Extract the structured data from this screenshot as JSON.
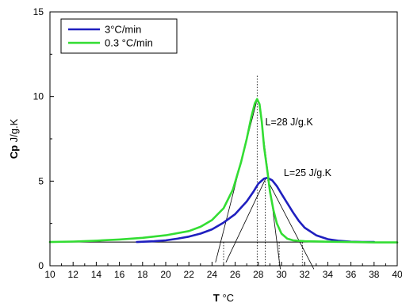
{
  "chart_data": {
    "type": "line",
    "title": "",
    "xlabel": {
      "bold": "T",
      "unit": " °C"
    },
    "ylabel": {
      "bold": "Cp",
      "unit": " J/g.K"
    },
    "xlim": [
      10,
      40
    ],
    "ylim": [
      0,
      15
    ],
    "xticks": [
      10,
      12,
      14,
      16,
      18,
      20,
      22,
      24,
      26,
      28,
      30,
      32,
      34,
      36,
      38,
      40
    ],
    "yticks": [
      0,
      5,
      10,
      15
    ],
    "grid": false,
    "legend_position": "top-left",
    "series": [
      {
        "name": "3°C/min",
        "color": "#1f1fbf",
        "points": [
          [
            17.5,
            1.4
          ],
          [
            19,
            1.45
          ],
          [
            20,
            1.5
          ],
          [
            21,
            1.6
          ],
          [
            22,
            1.72
          ],
          [
            23,
            1.9
          ],
          [
            24,
            2.15
          ],
          [
            25,
            2.55
          ],
          [
            26,
            3.05
          ],
          [
            27,
            3.8
          ],
          [
            27.6,
            4.4
          ],
          [
            28,
            4.85
          ],
          [
            28.5,
            5.15
          ],
          [
            28.8,
            5.2
          ],
          [
            29.2,
            5.05
          ],
          [
            29.6,
            4.7
          ],
          [
            30,
            4.25
          ],
          [
            30.5,
            3.7
          ],
          [
            31,
            3.15
          ],
          [
            31.5,
            2.65
          ],
          [
            32,
            2.25
          ],
          [
            33,
            1.8
          ],
          [
            34,
            1.57
          ],
          [
            35,
            1.47
          ],
          [
            36,
            1.42
          ],
          [
            37,
            1.4
          ],
          [
            38,
            1.4
          ]
        ]
      },
      {
        "name": "0.3 °C/min",
        "color": "#33dd33",
        "points": [
          [
            10,
            1.4
          ],
          [
            12,
            1.43
          ],
          [
            14,
            1.48
          ],
          [
            16,
            1.55
          ],
          [
            18,
            1.65
          ],
          [
            20,
            1.8
          ],
          [
            22,
            2.05
          ],
          [
            23,
            2.3
          ],
          [
            24,
            2.7
          ],
          [
            25,
            3.4
          ],
          [
            25.8,
            4.5
          ],
          [
            26.5,
            6.1
          ],
          [
            27,
            7.5
          ],
          [
            27.4,
            8.8
          ],
          [
            27.7,
            9.6
          ],
          [
            27.9,
            9.85
          ],
          [
            28.1,
            9.55
          ],
          [
            28.3,
            8.5
          ],
          [
            28.5,
            7.0
          ],
          [
            28.8,
            5.5
          ],
          [
            29,
            4.4
          ],
          [
            29.3,
            3.3
          ],
          [
            29.6,
            2.5
          ],
          [
            30,
            1.9
          ],
          [
            30.5,
            1.6
          ],
          [
            31,
            1.5
          ],
          [
            32,
            1.45
          ],
          [
            34,
            1.42
          ],
          [
            36,
            1.4
          ],
          [
            38,
            1.38
          ],
          [
            40,
            1.38
          ]
        ]
      }
    ],
    "baseline": {
      "y": 1.4,
      "x_from": 10,
      "x_to": 40
    },
    "tangent_lines": [
      [
        [
          24.3,
          0.2
        ],
        [
          27.85,
          9.7
        ]
      ],
      [
        [
          28.1,
          9.5
        ],
        [
          29.9,
          -0.2
        ]
      ],
      [
        [
          25.2,
          0.2
        ],
        [
          28.6,
          5.1
        ]
      ],
      [
        [
          28.8,
          5.05
        ],
        [
          32.8,
          -0.2
        ]
      ]
    ],
    "dotted_lines": [
      {
        "x": 27.9,
        "y_from": 0,
        "y_to": 11.3
      },
      {
        "x": 28.6,
        "y_from": 0,
        "y_to": 5.2
      },
      {
        "x": 25,
        "y_from": 0,
        "y_to": 1.4
      },
      {
        "x": 29.8,
        "y_from": 0,
        "y_to": 1.4
      },
      {
        "x": 31.8,
        "y_from": 0,
        "y_to": 1.4
      }
    ],
    "annotations": [
      {
        "text": "L=28 J/g.K",
        "x": 28.6,
        "y": 8.3
      },
      {
        "text": "L=25 J/g.K",
        "x": 30.2,
        "y": 5.3
      }
    ]
  }
}
